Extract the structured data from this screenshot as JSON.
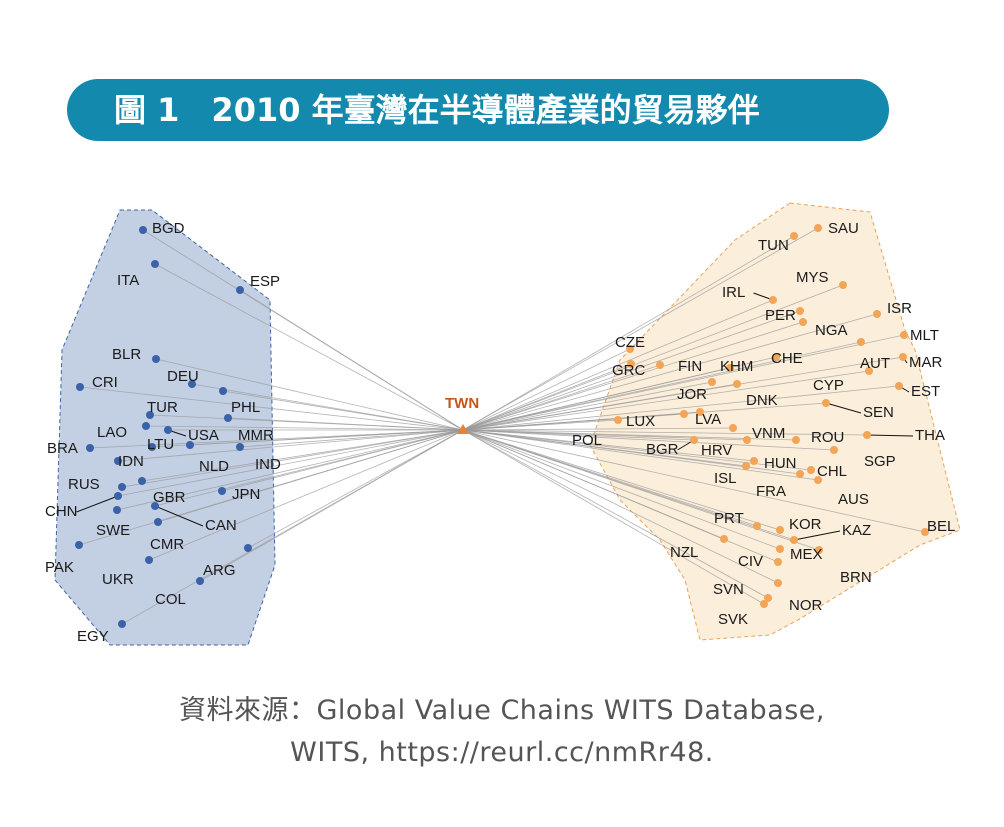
{
  "title": {
    "figure_label": "圖 1",
    "text": "2010 年臺灣在半導體產業的貿易夥伴"
  },
  "hub": {
    "code": "TWN"
  },
  "colors": {
    "banner": "#138aad",
    "left_fill": "#c3cfe3",
    "left_edge": "#3d66a6",
    "left_node": "#3a62a8",
    "right_fill": "#fbeedb",
    "right_edge": "#e8a35a",
    "right_node": "#f2a557",
    "hub": "#e8823a",
    "link": "#9a9a9a"
  },
  "left_group": {
    "nodes": [
      "BGD",
      "ITA",
      "ESP",
      "BLR",
      "CRI",
      "DEU",
      "TUR",
      "PHL",
      "LAO",
      "USA",
      "MMR",
      "BRA",
      "LTU",
      "IDN",
      "NLD",
      "IND",
      "RUS",
      "GBR",
      "JPN",
      "CHN",
      "CAN",
      "SWE",
      "CMR",
      "PAK",
      "ARG",
      "UKR",
      "COL",
      "EGY"
    ]
  },
  "right_group": {
    "nodes": [
      "SAU",
      "TUN",
      "MYS",
      "IRL",
      "ISR",
      "PER",
      "NGA",
      "MLT",
      "CZE",
      "CHE",
      "AUT",
      "MAR",
      "GRC",
      "FIN",
      "KHM",
      "CYP",
      "EST",
      "JOR",
      "DNK",
      "SEN",
      "LUX",
      "LVA",
      "THA",
      "VNM",
      "ROU",
      "POL",
      "BGR",
      "HRV",
      "SGP",
      "HUN",
      "ISL",
      "CHL",
      "FRA",
      "AUS",
      "BEL",
      "PRT",
      "KOR",
      "KAZ",
      "NZL",
      "MEX",
      "CIV",
      "BRN",
      "SVN",
      "NOR",
      "SVK"
    ]
  },
  "source": {
    "line1": "資料來源：Global Value Chains WITS Database,",
    "line2": "WITS, https://reurl.cc/nmRr48."
  }
}
